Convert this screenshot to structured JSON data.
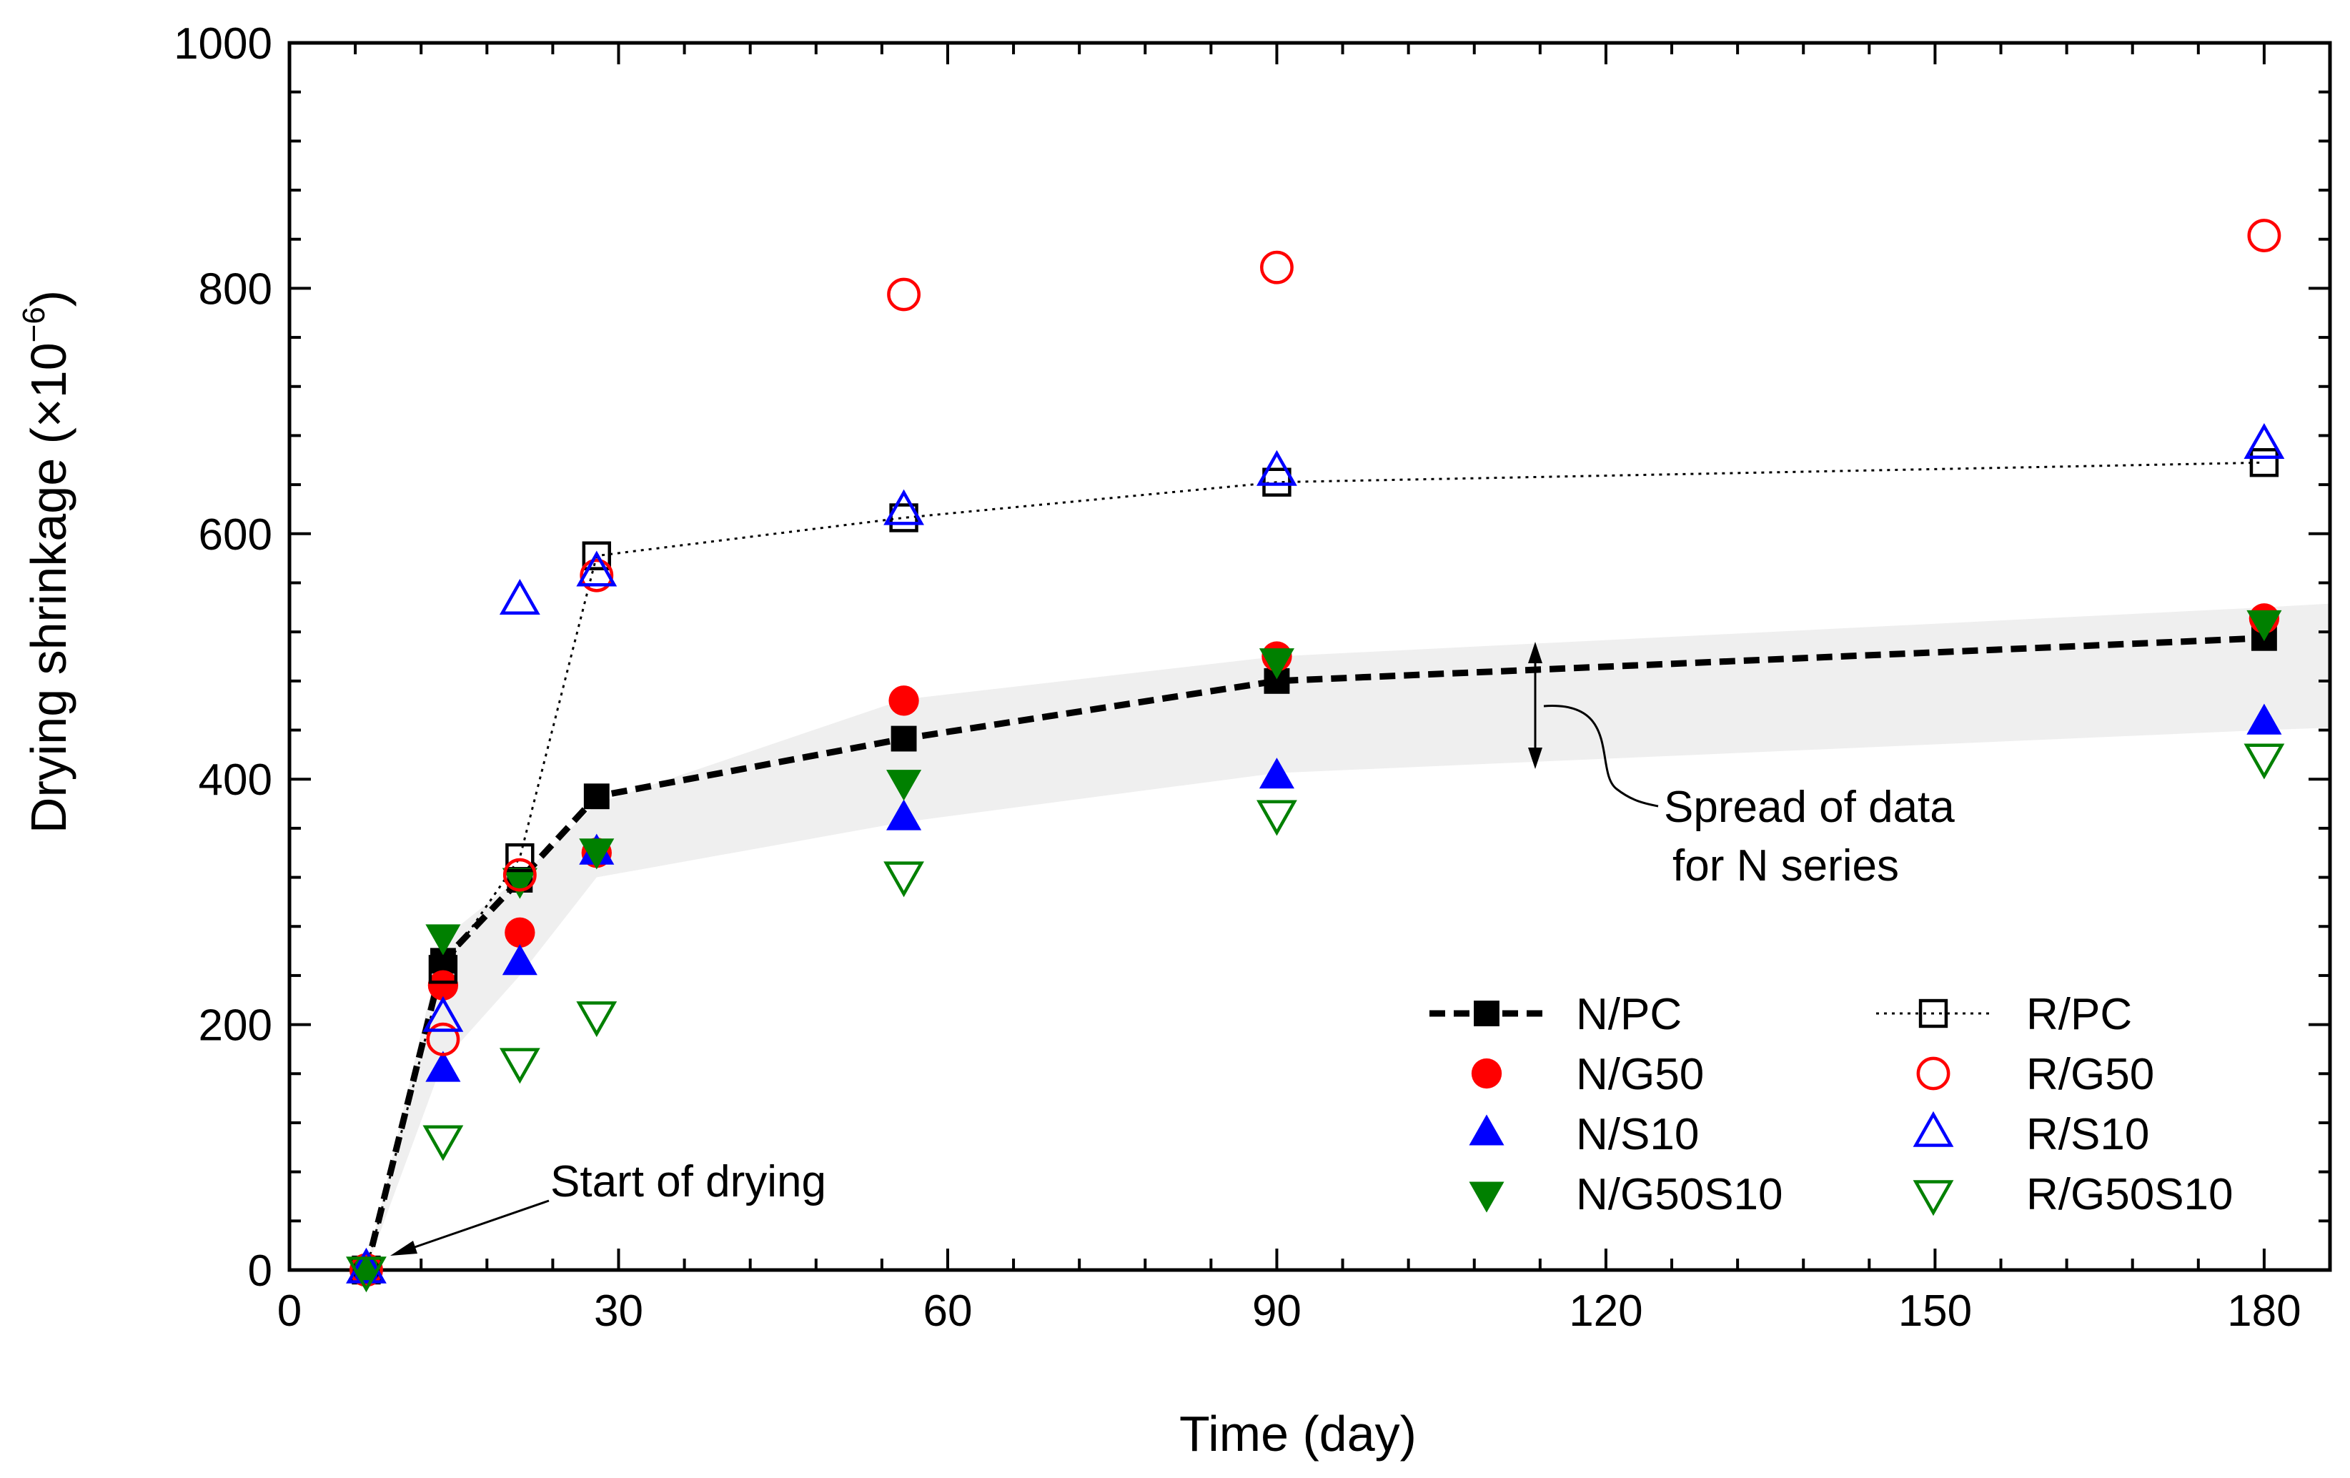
{
  "chart_data": {
    "type": "scatter",
    "xlabel": "Time (day)",
    "ylabel_main": "Drying shrinkage (×10",
    "ylabel_exp": "−6",
    "ylabel_close": ")",
    "xlim": [
      0,
      186
    ],
    "ylim": [
      0,
      1000
    ],
    "xticks": [
      0,
      30,
      60,
      90,
      120,
      150,
      180
    ],
    "yticks": [
      0,
      200,
      400,
      600,
      800,
      1000
    ],
    "x": [
      7,
      14,
      21,
      28,
      56,
      90,
      180
    ],
    "band": {
      "upper": [
        0,
        270,
        320,
        380,
        465,
        500,
        540
      ],
      "lower": [
        0,
        170,
        240,
        320,
        365,
        405,
        440
      ]
    },
    "series": [
      {
        "name": "N/PC",
        "marker": "square",
        "filled": true,
        "color": "#000000",
        "line": "dashed",
        "values": [
          0,
          252,
          318,
          386,
          433,
          480,
          515
        ]
      },
      {
        "name": "N/G50",
        "marker": "circle",
        "filled": true,
        "color": "#ff0000",
        "line": "none",
        "values": [
          0,
          232,
          275,
          340,
          464,
          500,
          531
        ]
      },
      {
        "name": "N/S10",
        "marker": "triangle-up",
        "filled": true,
        "color": "#0000ff",
        "line": "none",
        "values": [
          0,
          163,
          250,
          340,
          368,
          402,
          446
        ]
      },
      {
        "name": "N/G50S10",
        "marker": "triangle-down",
        "filled": true,
        "color": "#008000",
        "line": "none",
        "values": [
          0,
          272,
          318,
          342,
          398,
          497,
          528
        ]
      },
      {
        "name": "R/PC",
        "marker": "square",
        "filled": false,
        "color": "#000000",
        "line": "dotted",
        "values": [
          0,
          245,
          336,
          582,
          613,
          642,
          658
        ]
      },
      {
        "name": "R/G50",
        "marker": "circle",
        "filled": false,
        "color": "#ff0000",
        "line": "none",
        "values": [
          0,
          188,
          322,
          566,
          795,
          817,
          843
        ]
      },
      {
        "name": "R/S10",
        "marker": "triangle-up",
        "filled": false,
        "color": "#0000ff",
        "line": "none",
        "values": [
          0,
          205,
          545,
          568,
          618,
          650,
          672
        ]
      },
      {
        "name": "R/G50S10",
        "marker": "triangle-down",
        "filled": false,
        "color": "#008000",
        "line": "none",
        "values": [
          0,
          107,
          170,
          208,
          322,
          372,
          418
        ]
      }
    ],
    "annotations": {
      "start": "Start of drying",
      "spread_line1": "Spread of data",
      "spread_line2": "for N series"
    },
    "legend_position": "bottom-right"
  }
}
